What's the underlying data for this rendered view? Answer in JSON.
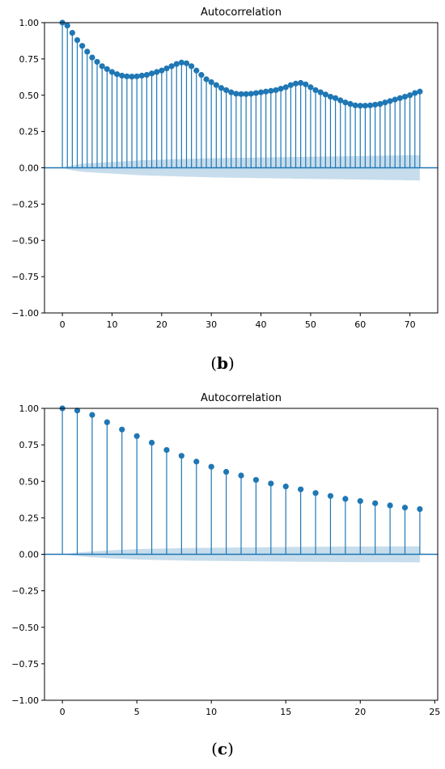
{
  "chart_data": [
    {
      "type": "stem",
      "title": "Autocorrelation",
      "caption_letter": "b",
      "xlabel": "",
      "ylabel": "",
      "xlim": [
        -3.6,
        75.6
      ],
      "ylim": [
        -1.0,
        1.0
      ],
      "xticks": [
        0,
        10,
        20,
        30,
        40,
        50,
        60,
        70
      ],
      "yticks": [
        "-1.00",
        "-0.75",
        "-0.50",
        "-0.25",
        "0.00",
        "0.25",
        "0.50",
        "0.75",
        "1.00"
      ],
      "lags": [
        0,
        1,
        2,
        3,
        4,
        5,
        6,
        7,
        8,
        9,
        10,
        11,
        12,
        13,
        14,
        15,
        16,
        17,
        18,
        19,
        20,
        21,
        22,
        23,
        24,
        25,
        26,
        27,
        28,
        29,
        30,
        31,
        32,
        33,
        34,
        35,
        36,
        37,
        38,
        39,
        40,
        41,
        42,
        43,
        44,
        45,
        46,
        47,
        48,
        49,
        50,
        51,
        52,
        53,
        54,
        55,
        56,
        57,
        58,
        59,
        60,
        61,
        62,
        63,
        64,
        65,
        66,
        67,
        68,
        69,
        70,
        71,
        72
      ],
      "values": [
        1.0,
        0.98,
        0.93,
        0.88,
        0.84,
        0.8,
        0.76,
        0.73,
        0.7,
        0.68,
        0.66,
        0.645,
        0.635,
        0.63,
        0.628,
        0.63,
        0.635,
        0.64,
        0.65,
        0.66,
        0.67,
        0.685,
        0.7,
        0.715,
        0.725,
        0.72,
        0.7,
        0.67,
        0.64,
        0.61,
        0.59,
        0.57,
        0.55,
        0.535,
        0.52,
        0.51,
        0.508,
        0.508,
        0.51,
        0.515,
        0.52,
        0.525,
        0.53,
        0.535,
        0.545,
        0.555,
        0.57,
        0.58,
        0.585,
        0.575,
        0.555,
        0.535,
        0.52,
        0.505,
        0.49,
        0.48,
        0.465,
        0.45,
        0.44,
        0.43,
        0.428,
        0.428,
        0.43,
        0.435,
        0.44,
        0.45,
        0.46,
        0.47,
        0.48,
        0.49,
        0.5,
        0.515,
        0.525
      ],
      "confidence_band": [
        0.0,
        0.01,
        0.017,
        0.023,
        0.027,
        0.03,
        0.032,
        0.034,
        0.036,
        0.038,
        0.04,
        0.042,
        0.044,
        0.046,
        0.048,
        0.05,
        0.052,
        0.053,
        0.054,
        0.055,
        0.056,
        0.057,
        0.058,
        0.059,
        0.06,
        0.061,
        0.062,
        0.063,
        0.064,
        0.065,
        0.066,
        0.067,
        0.067,
        0.068,
        0.068,
        0.069,
        0.069,
        0.07,
        0.07,
        0.071,
        0.071,
        0.072,
        0.072,
        0.073,
        0.073,
        0.074,
        0.074,
        0.075,
        0.075,
        0.076,
        0.076,
        0.077,
        0.077,
        0.078,
        0.078,
        0.079,
        0.079,
        0.08,
        0.08,
        0.081,
        0.081,
        0.082,
        0.082,
        0.083,
        0.083,
        0.084,
        0.084,
        0.085,
        0.085,
        0.086,
        0.086,
        0.087,
        0.087
      ],
      "color": "#1f77b4",
      "band_color": "#1f77b4",
      "grid": false
    },
    {
      "type": "stem",
      "title": "Autocorrelation",
      "caption_letter": "c",
      "xlabel": "",
      "ylabel": "",
      "xlim": [
        -1.2,
        25.2
      ],
      "ylim": [
        -1.0,
        1.0
      ],
      "xticks": [
        0,
        5,
        10,
        15,
        20,
        25
      ],
      "yticks": [
        "-1.00",
        "-0.75",
        "-0.50",
        "-0.25",
        "0.00",
        "0.25",
        "0.50",
        "0.75",
        "1.00"
      ],
      "lags": [
        0,
        1,
        2,
        3,
        4,
        5,
        6,
        7,
        8,
        9,
        10,
        11,
        12,
        13,
        14,
        15,
        16,
        17,
        18,
        19,
        20,
        21,
        22,
        23,
        24
      ],
      "values": [
        1.0,
        0.985,
        0.955,
        0.905,
        0.855,
        0.81,
        0.765,
        0.715,
        0.675,
        0.635,
        0.6,
        0.565,
        0.54,
        0.51,
        0.485,
        0.465,
        0.445,
        0.42,
        0.4,
        0.38,
        0.365,
        0.35,
        0.335,
        0.32,
        0.31
      ],
      "confidence_band": [
        0.0,
        0.012,
        0.02,
        0.026,
        0.031,
        0.035,
        0.038,
        0.04,
        0.042,
        0.044,
        0.045,
        0.046,
        0.047,
        0.048,
        0.049,
        0.05,
        0.051,
        0.052,
        0.052,
        0.053,
        0.053,
        0.054,
        0.054,
        0.055,
        0.055
      ],
      "color": "#1f77b4",
      "band_color": "#1f77b4",
      "grid": false
    }
  ]
}
